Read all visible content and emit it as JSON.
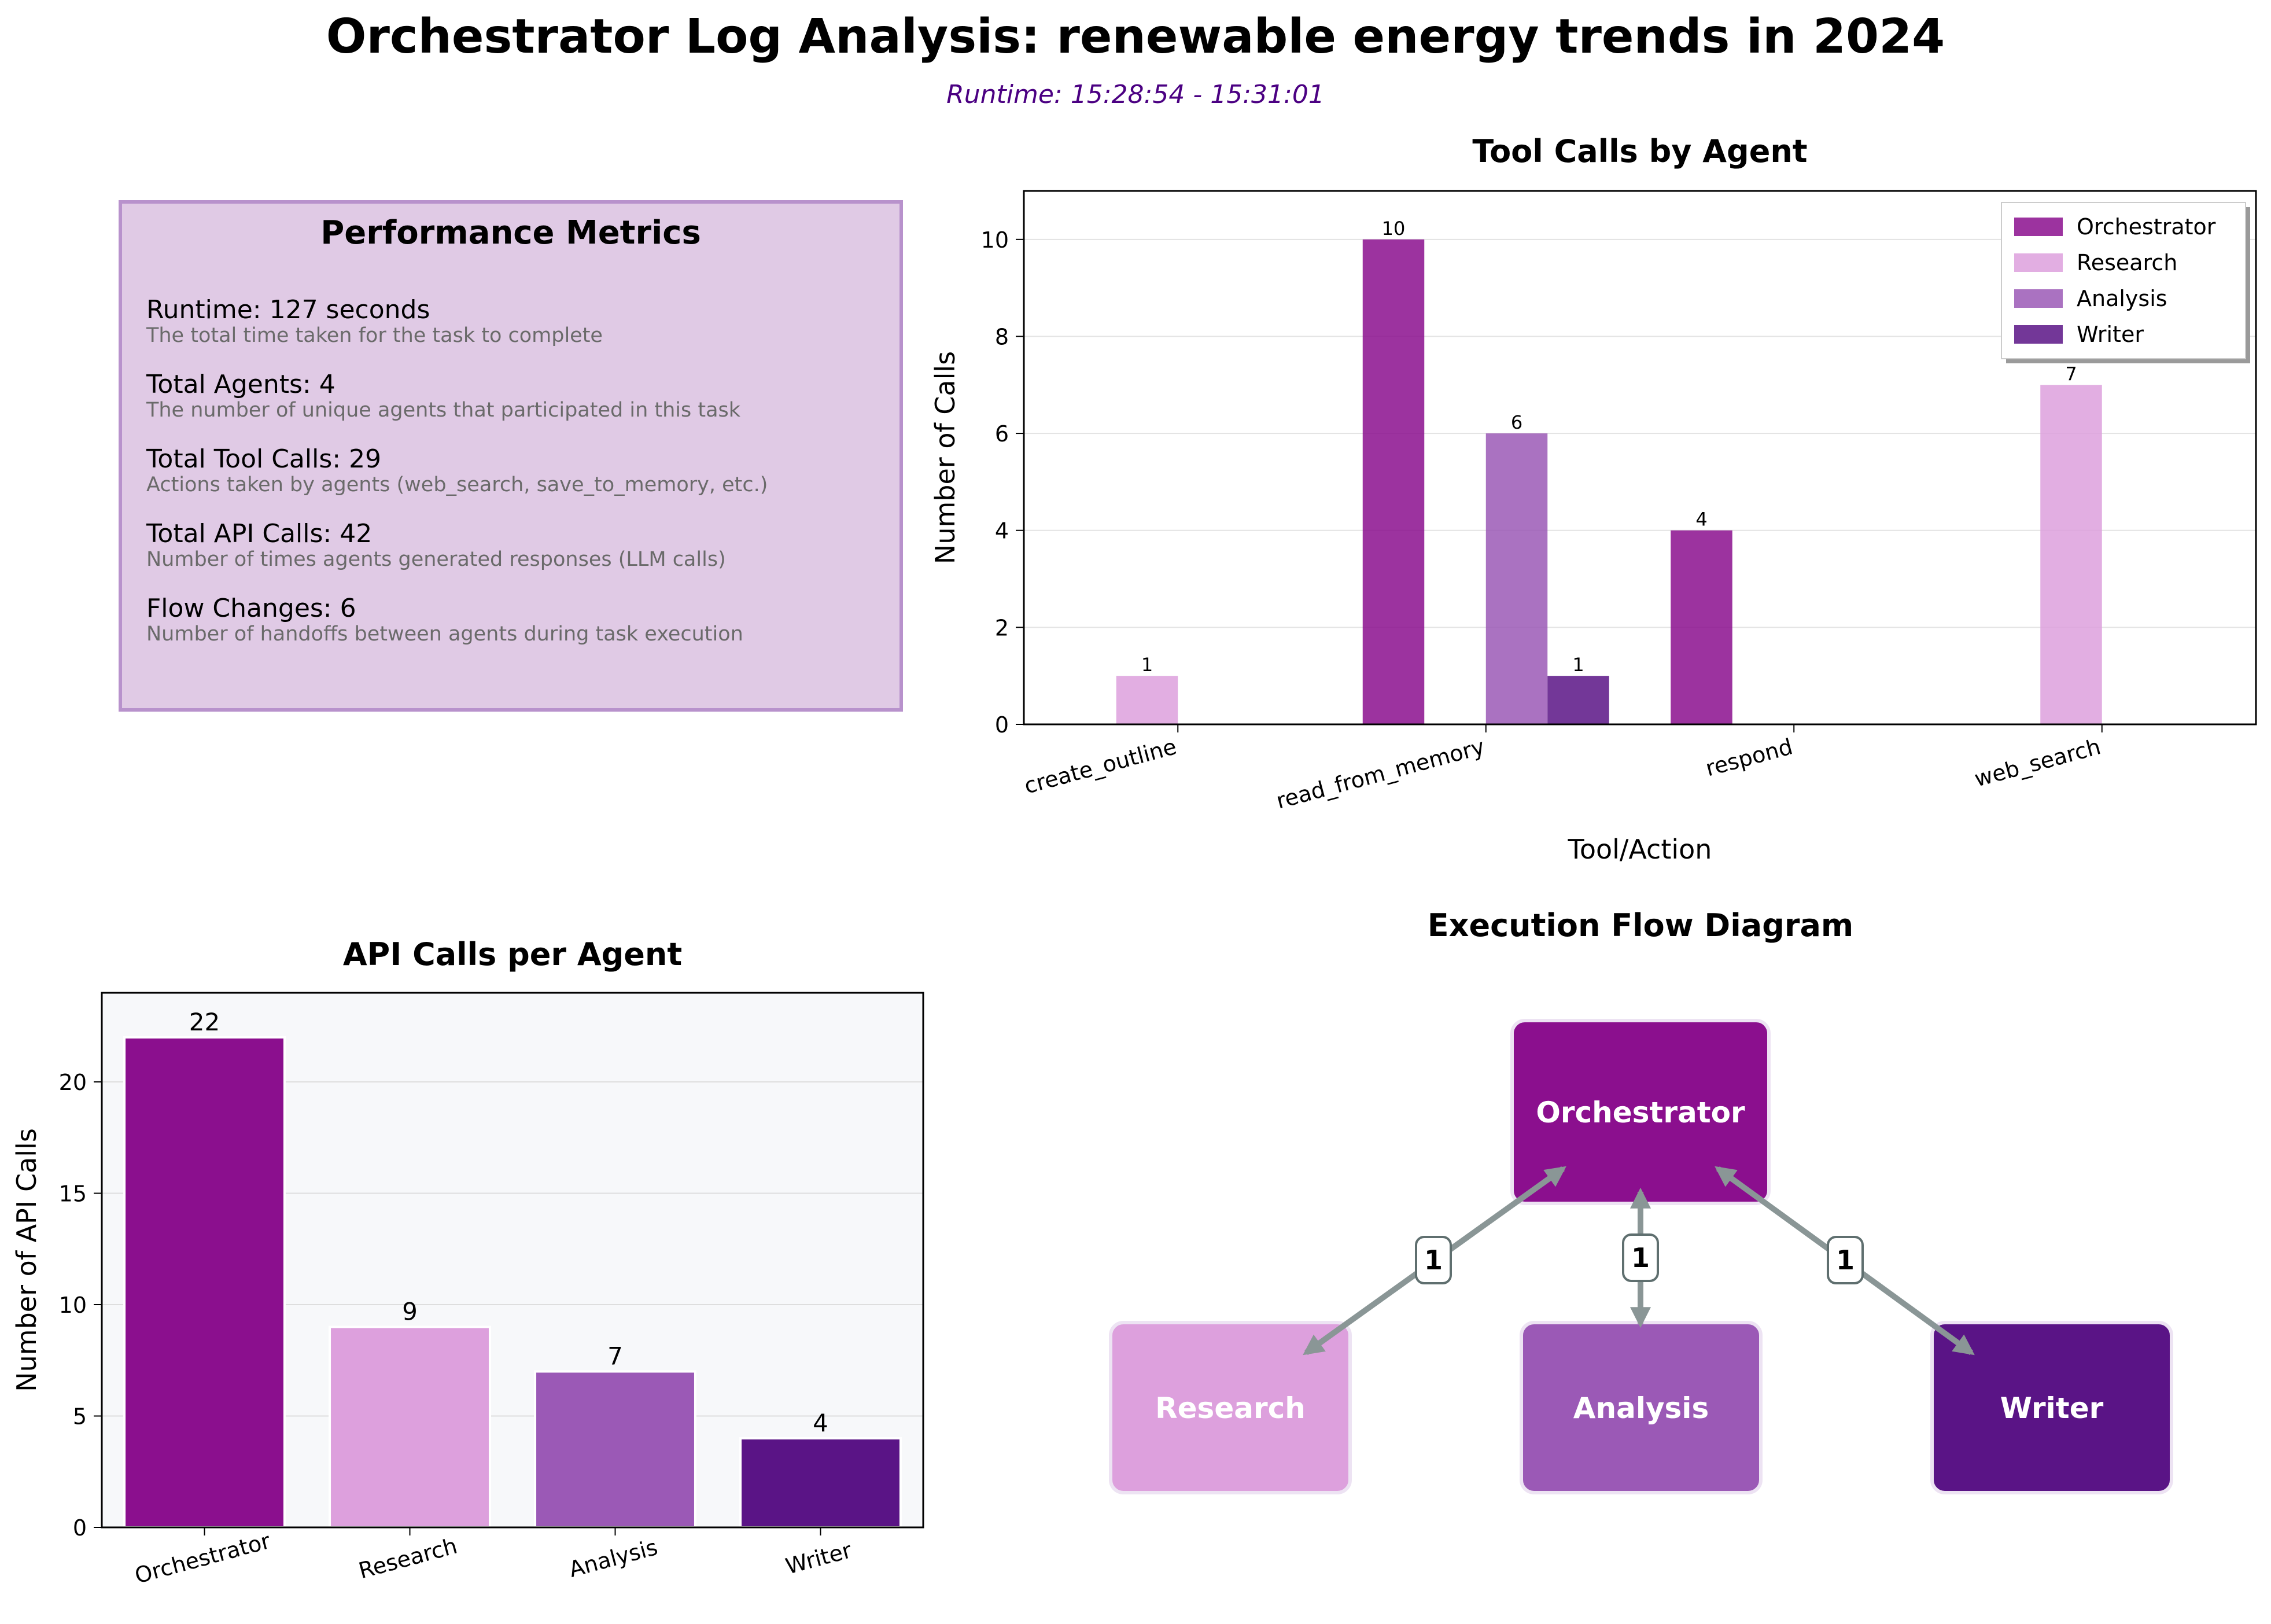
{
  "header": {
    "title": "Orchestrator Log Analysis: renewable energy trends in 2024",
    "subtitle": "Runtime: 15:28:54 - 15:31:01"
  },
  "metrics": {
    "title": "Performance Metrics",
    "items": [
      {
        "label": "Runtime: 127 seconds",
        "desc": "The total time taken for the task to complete"
      },
      {
        "label": "Total Agents: 4",
        "desc": "The number of unique agents that participated in this task"
      },
      {
        "label": "Total Tool Calls: 29",
        "desc": "Actions taken by agents (web_search, save_to_memory, etc.)"
      },
      {
        "label": "Total API Calls: 42",
        "desc": "Number of times agents generated responses (LLM calls)"
      },
      {
        "label": "Flow Changes: 6",
        "desc": "Number of handoffs between agents during task execution"
      }
    ]
  },
  "colors": {
    "Orchestrator": "#8b0f8e",
    "Research": "#dda0dd",
    "Analysis": "#9b59b6",
    "Writer": "#5a1486"
  },
  "chart_data": [
    {
      "type": "bar",
      "title": "Tool Calls by Agent",
      "xlabel": "Tool/Action",
      "ylabel": "Number of Calls",
      "categories": [
        "create_outline",
        "read_from_memory",
        "respond",
        "web_search"
      ],
      "series": [
        {
          "name": "Orchestrator",
          "values": [
            0,
            10,
            4,
            0
          ]
        },
        {
          "name": "Research",
          "values": [
            1,
            0,
            0,
            7
          ]
        },
        {
          "name": "Analysis",
          "values": [
            0,
            6,
            0,
            0
          ]
        },
        {
          "name": "Writer",
          "values": [
            0,
            1,
            0,
            0
          ]
        }
      ],
      "yticks": [
        0,
        2,
        4,
        6,
        8,
        10
      ],
      "ylim": [
        0,
        11
      ],
      "legend": "top-right",
      "grid": true
    },
    {
      "type": "bar",
      "title": "API Calls per Agent",
      "xlabel": "",
      "ylabel": "Number of API Calls",
      "categories": [
        "Orchestrator",
        "Research",
        "Analysis",
        "Writer"
      ],
      "values": [
        22,
        9,
        7,
        4
      ],
      "yticks": [
        0,
        5,
        10,
        15,
        20
      ],
      "ylim": [
        0,
        24
      ],
      "grid": true
    }
  ],
  "flow": {
    "title": "Execution Flow Diagram",
    "nodes": [
      "Orchestrator",
      "Research",
      "Analysis",
      "Writer"
    ],
    "edges": [
      {
        "from": "Orchestrator",
        "to": "Research",
        "label": "1"
      },
      {
        "from": "Orchestrator",
        "to": "Analysis",
        "label": "1"
      },
      {
        "from": "Orchestrator",
        "to": "Writer",
        "label": "1"
      }
    ]
  }
}
